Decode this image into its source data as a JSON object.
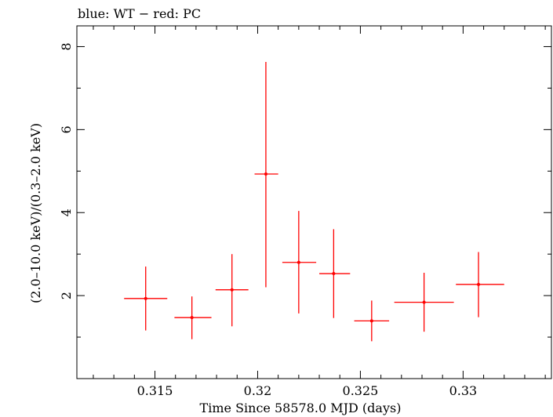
{
  "chart_data": {
    "type": "scatter",
    "title": "blue: WT − red: PC",
    "xlabel": "Time Since 58578.0 MJD (days)",
    "ylabel": "(2.0–10.0 keV)/(0.3–2.0 keV)",
    "xlim": [
      0.3112,
      0.3343
    ],
    "ylim": [
      0.0,
      8.5
    ],
    "x_ticks": [
      0.315,
      0.32,
      0.325,
      0.33
    ],
    "x_tick_labels": [
      "0.315",
      "0.32",
      "0.325",
      "0.33"
    ],
    "y_ticks": [
      2,
      4,
      6,
      8
    ],
    "y_tick_labels": [
      "2",
      "4",
      "6",
      "8"
    ],
    "grid": false,
    "series": [
      {
        "color": "#ff0000",
        "points": [
          {
            "x": 0.31455,
            "xlo": 0.3135,
            "xhi": 0.3156,
            "y": 1.93,
            "ylo": 1.16,
            "yhi": 2.7
          },
          {
            "x": 0.3168,
            "xlo": 0.31595,
            "xhi": 0.31775,
            "y": 1.47,
            "ylo": 0.95,
            "yhi": 1.98
          },
          {
            "x": 0.31875,
            "xlo": 0.31795,
            "xhi": 0.31955,
            "y": 2.14,
            "ylo": 1.26,
            "yhi": 3.0
          },
          {
            "x": 0.3204,
            "xlo": 0.31985,
            "xhi": 0.321,
            "y": 4.93,
            "ylo": 2.2,
            "yhi": 7.63
          },
          {
            "x": 0.322,
            "xlo": 0.3212,
            "xhi": 0.32285,
            "y": 2.8,
            "ylo": 1.57,
            "yhi": 4.04
          },
          {
            "x": 0.3237,
            "xlo": 0.323,
            "xhi": 0.3245,
            "y": 2.53,
            "ylo": 1.46,
            "yhi": 3.6
          },
          {
            "x": 0.32555,
            "xlo": 0.3247,
            "xhi": 0.3264,
            "y": 1.39,
            "ylo": 0.9,
            "yhi": 1.88
          },
          {
            "x": 0.3281,
            "xlo": 0.32665,
            "xhi": 0.32955,
            "y": 1.84,
            "ylo": 1.13,
            "yhi": 2.55
          },
          {
            "x": 0.33075,
            "xlo": 0.32965,
            "xhi": 0.332,
            "y": 2.27,
            "ylo": 1.48,
            "yhi": 3.05
          }
        ]
      }
    ]
  }
}
